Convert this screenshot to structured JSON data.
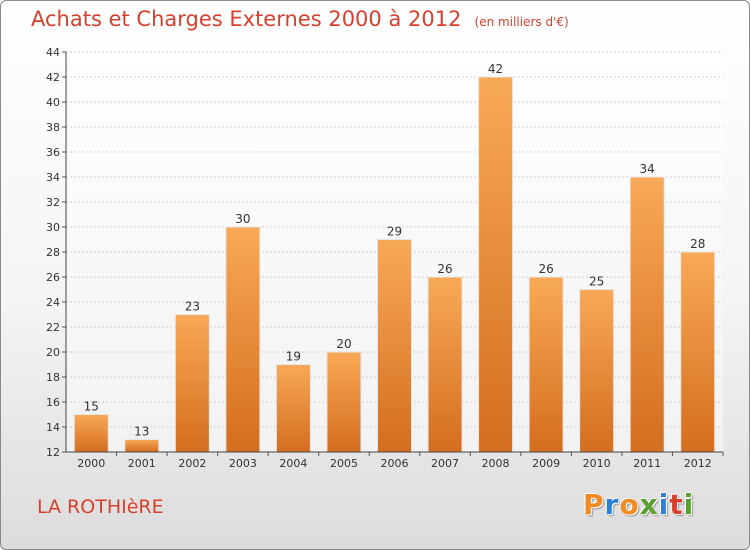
{
  "title": "Achats et Charges Externes 2000 à 2012",
  "unit": "(en milliers d'€)",
  "place": "LA ROTHIèRE",
  "brand": "Proxiti",
  "brand_colors": [
    "#f08a24",
    "#2e7fd6",
    "#f08a24",
    "#5aa02c",
    "#2e7fd6",
    "#d8402e",
    "#5aa02c"
  ],
  "colors": {
    "accent_text": "#d8402e",
    "bar_light": "#f7a553",
    "bar_dark": "#d46d1f"
  },
  "chart_data": {
    "type": "bar",
    "categories": [
      "2000",
      "2001",
      "2002",
      "2003",
      "2004",
      "2005",
      "2006",
      "2007",
      "2008",
      "2009",
      "2010",
      "2011",
      "2012"
    ],
    "values": [
      15,
      13,
      23,
      30,
      19,
      20,
      29,
      26,
      42,
      26,
      25,
      34,
      28
    ],
    "title": "Achats et Charges Externes 2000 à 2012",
    "xlabel": "",
    "ylabel": "",
    "ylim": [
      12,
      44
    ],
    "yticks": [
      12,
      14,
      16,
      18,
      20,
      22,
      24,
      26,
      28,
      30,
      32,
      34,
      36,
      38,
      40,
      42,
      44
    ],
    "grid": true,
    "data_labels": true
  }
}
